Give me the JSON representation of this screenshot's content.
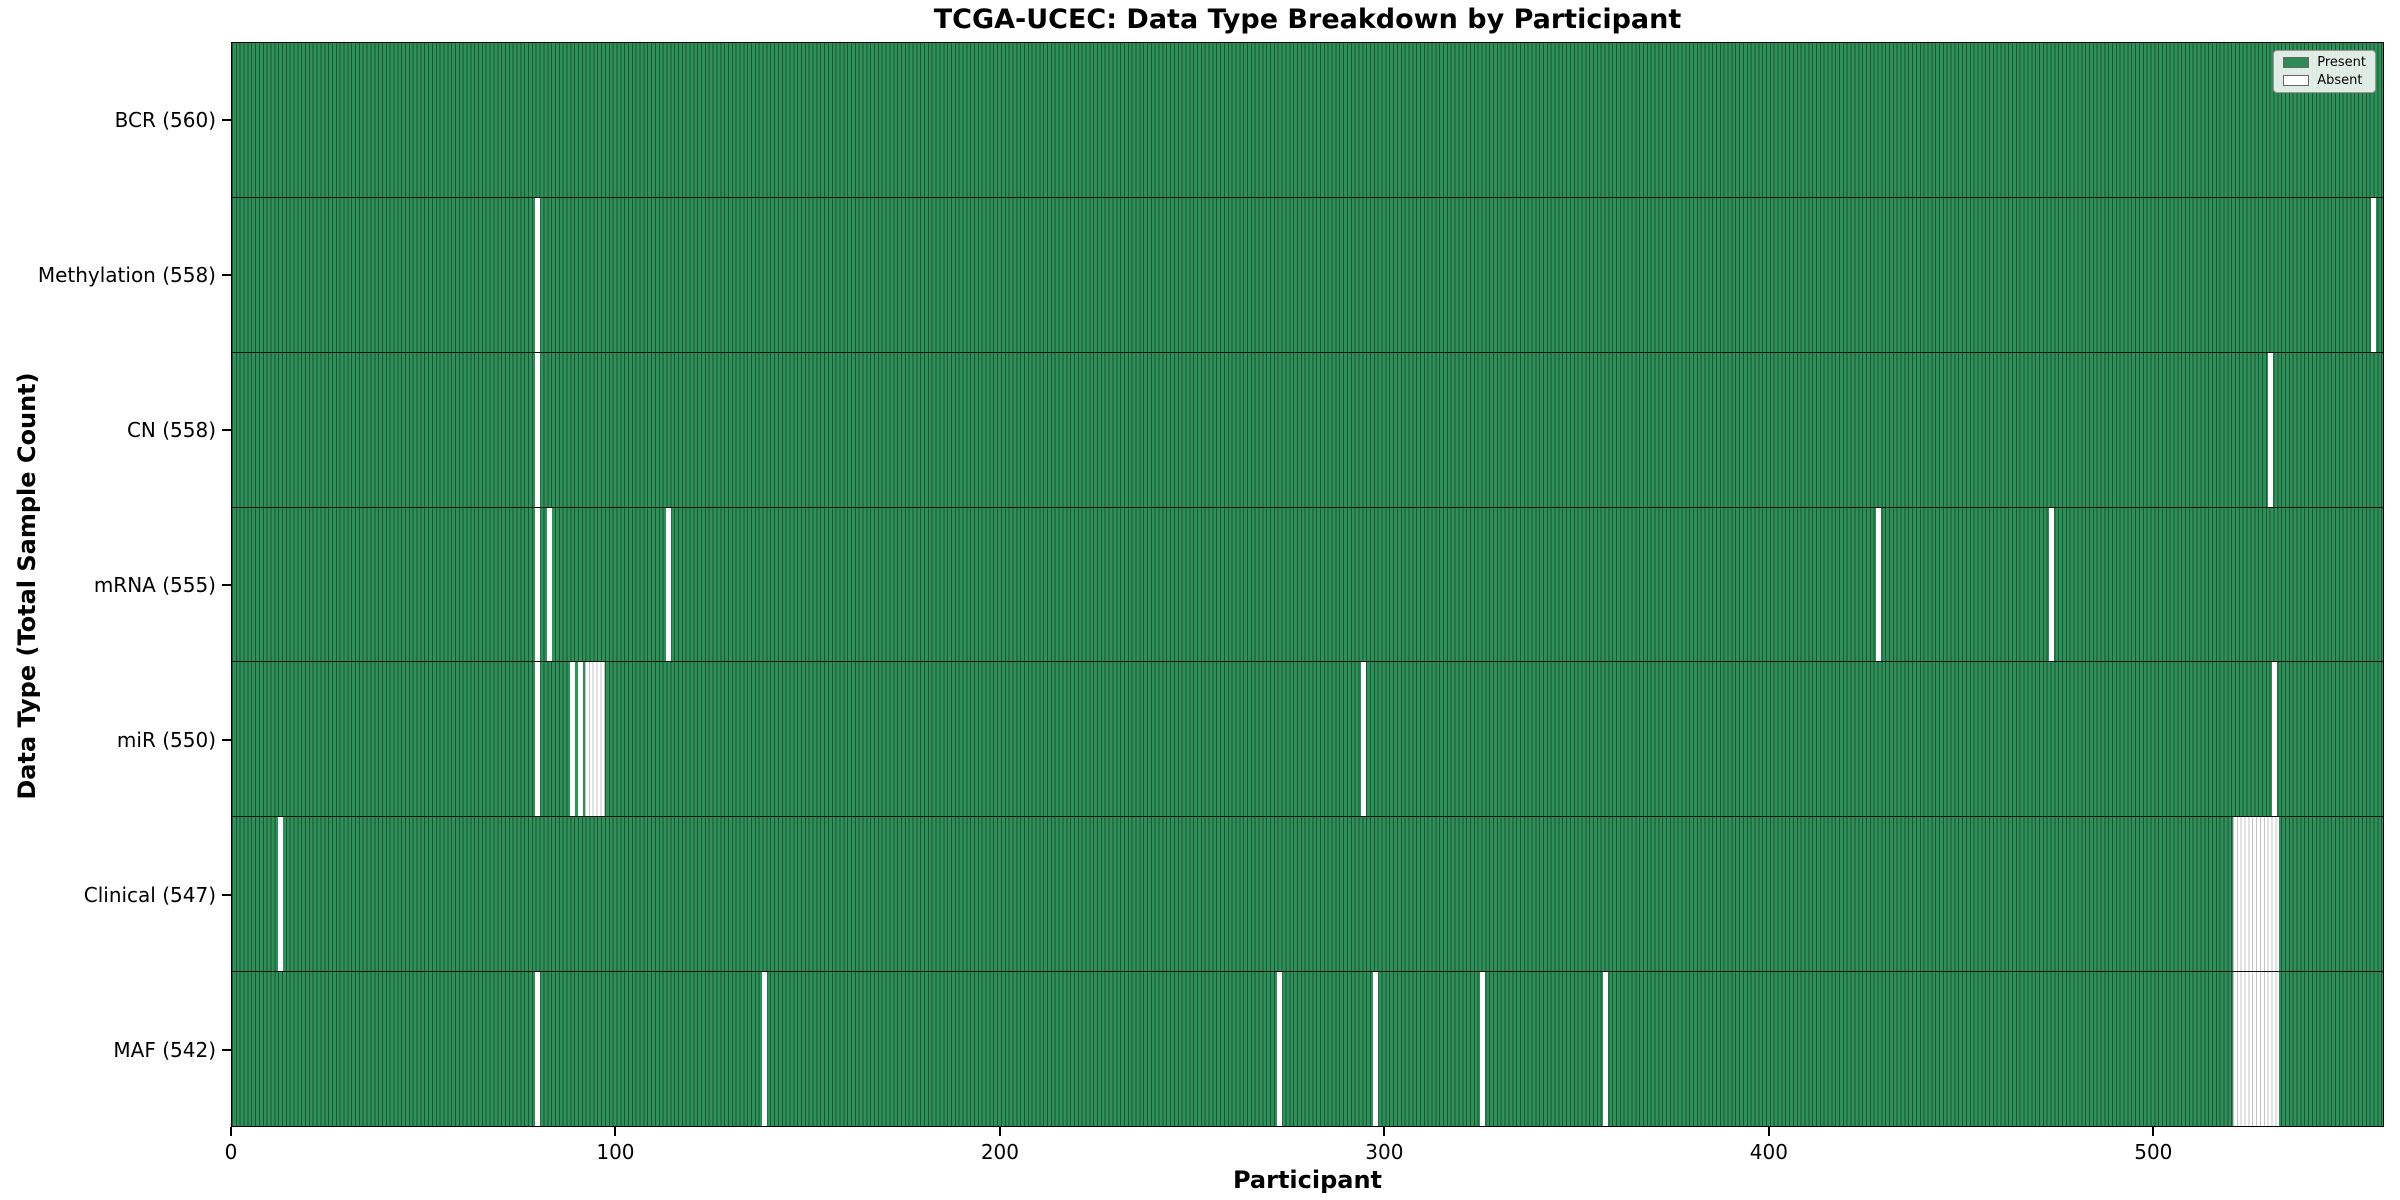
{
  "chart_data": {
    "type": "heatmap",
    "title": "TCGA-UCEC: Data Type Breakdown by Participant",
    "xlabel": "Participant",
    "ylabel": "Data Type (Total Sample Count)",
    "x_domain": [
      0,
      560
    ],
    "x_ticks": [
      0,
      100,
      200,
      300,
      400,
      500
    ],
    "total_participants": 560,
    "grid": false,
    "colors": {
      "present": "#2e8b57",
      "absent": "#ffffff",
      "bar_edge": "#0a2618",
      "frame": "#000000"
    },
    "legend": {
      "position": "upper right",
      "entries": [
        {
          "label": "Present",
          "color": "#2e8b57"
        },
        {
          "label": "Absent",
          "color": "#ffffff"
        }
      ]
    },
    "rows": [
      {
        "id": "bcr",
        "label": "BCR (560)",
        "data_type": "BCR",
        "present_count": 560,
        "absent_ranges": []
      },
      {
        "id": "methylation",
        "label": "Methylation (558)",
        "data_type": "Methylation",
        "present_count": 558,
        "absent_ranges": [
          [
            79,
            79
          ],
          [
            557,
            557
          ]
        ]
      },
      {
        "id": "cn",
        "label": "CN (558)",
        "data_type": "CN",
        "present_count": 558,
        "absent_ranges": [
          [
            79,
            79
          ],
          [
            530,
            530
          ]
        ]
      },
      {
        "id": "mrna",
        "label": "mRNA (555)",
        "data_type": "mRNA",
        "present_count": 555,
        "absent_ranges": [
          [
            79,
            79
          ],
          [
            82,
            82
          ],
          [
            113,
            113
          ],
          [
            428,
            428
          ],
          [
            473,
            473
          ]
        ]
      },
      {
        "id": "mir",
        "label": "miR (550)",
        "data_type": "miR",
        "present_count": 550,
        "absent_ranges": [
          [
            79,
            79
          ],
          [
            88,
            88
          ],
          [
            90,
            90
          ],
          [
            92,
            96
          ],
          [
            294,
            294
          ],
          [
            531,
            531
          ]
        ]
      },
      {
        "id": "clinical",
        "label": "Clinical (547)",
        "data_type": "Clinical",
        "present_count": 547,
        "absent_ranges": [
          [
            12,
            12
          ],
          [
            521,
            532
          ]
        ]
      },
      {
        "id": "maf",
        "label": "MAF (542)",
        "data_type": "MAF",
        "present_count": 542,
        "absent_ranges": [
          [
            79,
            79
          ],
          [
            138,
            138
          ],
          [
            272,
            272
          ],
          [
            297,
            297
          ],
          [
            325,
            325
          ],
          [
            357,
            357
          ],
          [
            521,
            532
          ]
        ]
      }
    ]
  }
}
